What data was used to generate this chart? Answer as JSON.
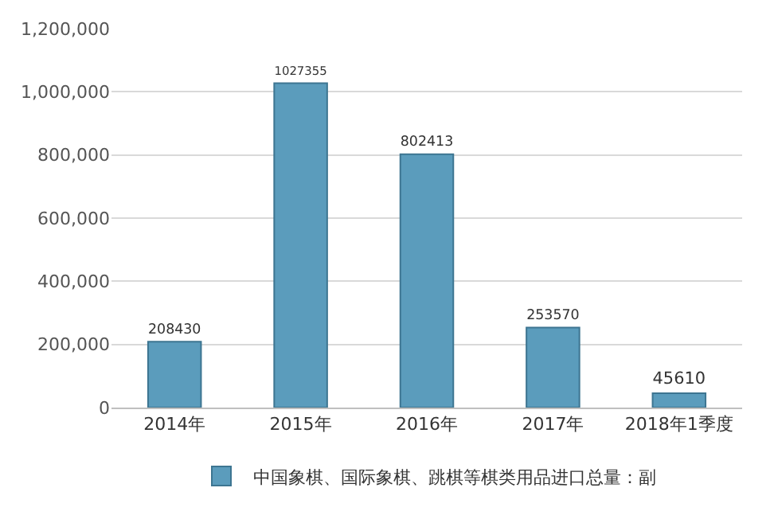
{
  "chart_data": {
    "type": "bar",
    "categories": [
      "2014年",
      "2015年",
      "2016年",
      "2017年",
      "2018年1季度"
    ],
    "series": [
      {
        "name": "中国象棋、国际象棋、跳棋等棋类用品进口总量：副",
        "color": "#5b9cbc",
        "values": [
          208430,
          1027355,
          802413,
          253570,
          45610
        ]
      }
    ],
    "ylim": [
      0,
      1200000
    ],
    "yticks": [
      {
        "value": 0,
        "label": "0"
      },
      {
        "value": 200000,
        "label": "200,000"
      },
      {
        "value": 400000,
        "label": "400,000"
      },
      {
        "value": 600000,
        "label": "600,000"
      },
      {
        "value": 800000,
        "label": "800,000"
      },
      {
        "value": 1000000,
        "label": "1,000,000"
      },
      {
        "value": 1200000,
        "label": "1,200,000"
      }
    ],
    "grid": "y",
    "legend": "bottom",
    "data_labels": true
  }
}
